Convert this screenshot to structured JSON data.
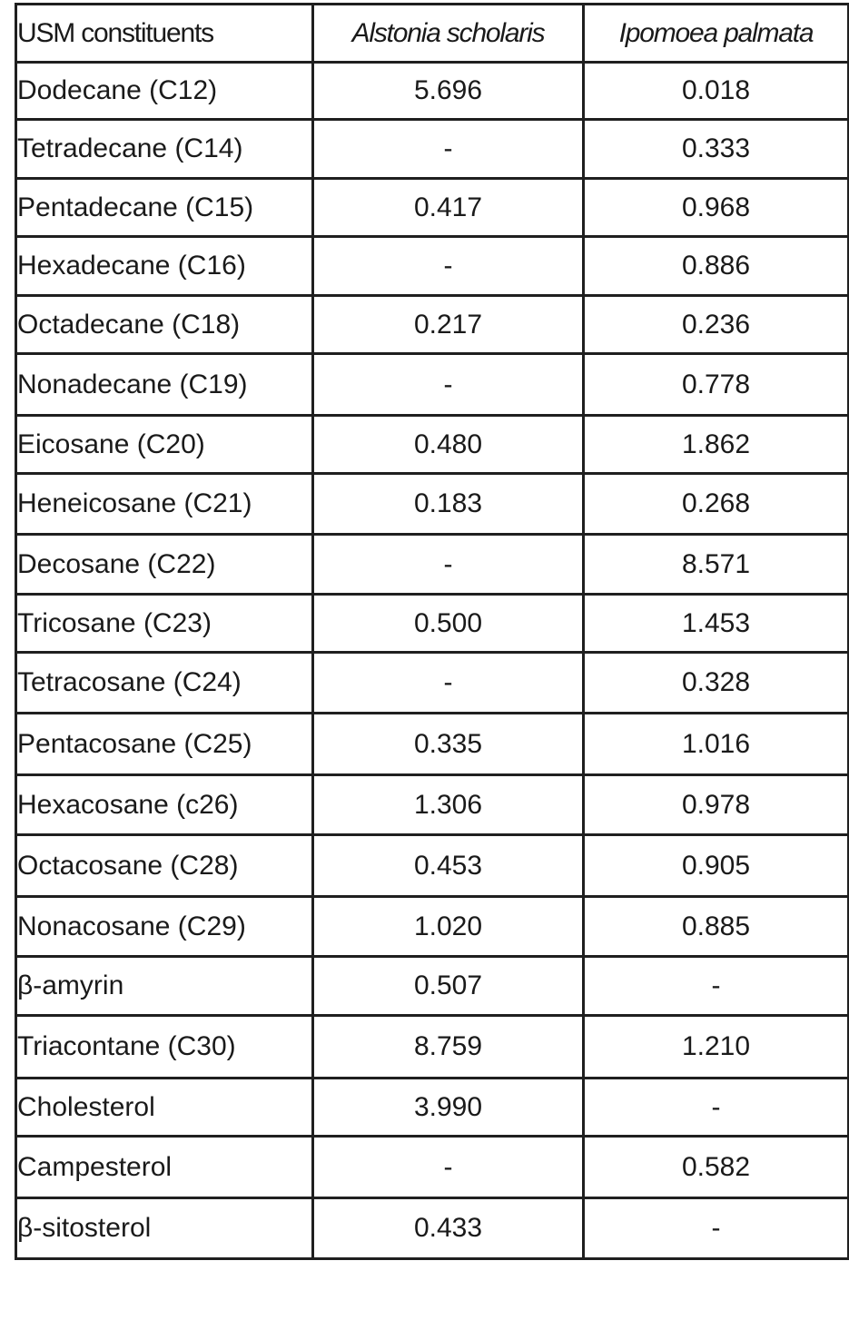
{
  "table": {
    "headers": [
      "USM constituents",
      "Alstonia scholaris",
      "Ipomoea palmata"
    ],
    "rows": [
      [
        "Dodecane (C12)",
        "5.696",
        "0.018"
      ],
      [
        "Tetradecane (C14)",
        "-",
        "0.333"
      ],
      [
        "Pentadecane (C15)",
        "0.417",
        "0.968"
      ],
      [
        "Hexadecane (C16)",
        "-",
        "0.886"
      ],
      [
        "Octadecane (C18)",
        "0.217",
        "0.236"
      ],
      [
        "Nonadecane (C19)",
        "-",
        "0.778"
      ],
      [
        "Eicosane (C20)",
        "0.480",
        "1.862"
      ],
      [
        "Heneicosane (C21)",
        "0.183",
        "0.268"
      ],
      [
        "Decosane (C22)",
        "-",
        "8.571"
      ],
      [
        "Tricosane (C23)",
        "0.500",
        "1.453"
      ],
      [
        "Tetracosane (C24)",
        "-",
        "0.328"
      ],
      [
        "Pentacosane (C25)",
        "0.335",
        "1.016"
      ],
      [
        "Hexacosane (c26)",
        "1.306",
        "0.978"
      ],
      [
        "Octacosane (C28)",
        "0.453",
        "0.905"
      ],
      [
        "Nonacosane (C29)",
        "1.020",
        "0.885"
      ],
      [
        "β-amyrin",
        "0.507",
        "-"
      ],
      [
        "Triacontane (C30)",
        "8.759",
        "1.210"
      ],
      [
        "Cholesterol",
        "3.990",
        "-"
      ],
      [
        "Campesterol",
        "-",
        "0.582"
      ],
      [
        "β-sitosterol",
        "0.433",
        "-"
      ]
    ]
  }
}
